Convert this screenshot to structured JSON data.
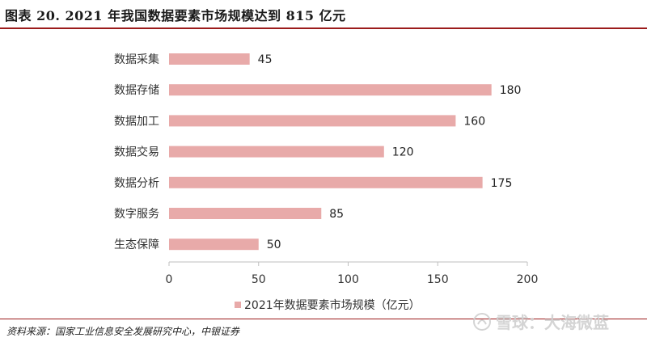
{
  "title": "图表 20. 2021 年我国数据要素市场规模达到 815 亿元",
  "source": "资料来源：国家工业信息安全发展研究中心，中银证券",
  "watermark": "雪球：大海微蓝",
  "colors": {
    "bar": "#e8aaa9",
    "rule": "#9b1b1b",
    "axis": "#bfbfbf",
    "text": "#333333"
  },
  "chart_data": {
    "type": "bar",
    "orientation": "horizontal",
    "categories": [
      "数据采集",
      "数据存储",
      "数据加工",
      "数据交易",
      "数据分析",
      "数字服务",
      "生态保障"
    ],
    "series": [
      {
        "name": "2021年数据要素市场规模（亿元）",
        "values": [
          45,
          180,
          160,
          120,
          175,
          85,
          50
        ]
      }
    ],
    "xlim": [
      0,
      200
    ],
    "xticks": [
      0,
      50,
      100,
      150,
      200
    ],
    "grid": false,
    "legend": "bottom",
    "data_labels": true
  }
}
